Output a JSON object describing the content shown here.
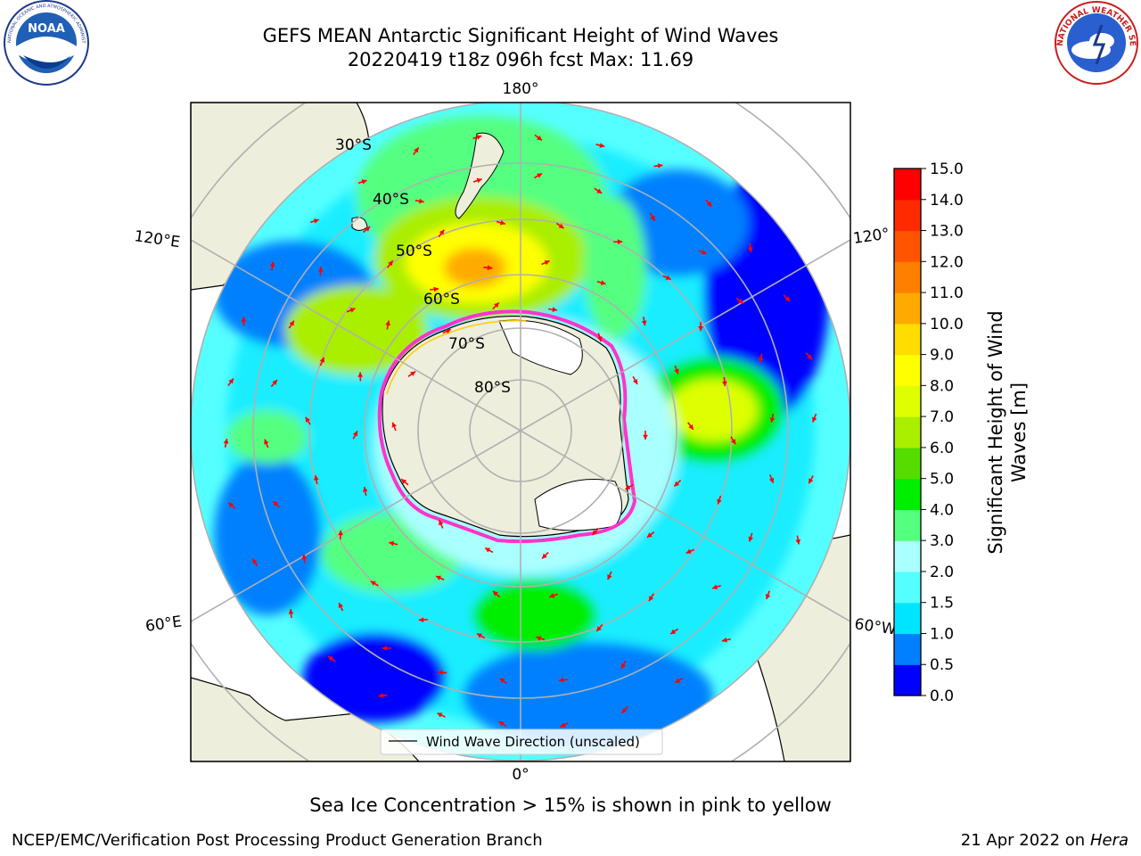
{
  "header": {
    "title_line1": "GEFS MEAN Antarctic Significant Height of Wind Waves",
    "title_line2": "20220419 t18z 096h fcst   Max: 11.69"
  },
  "logos": {
    "noaa_text": "NOAA",
    "noaa_ring_text": "NATIONAL OCEANIC AND ATMOSPHERIC ADMINISTRATION · U.S. DEPARTMENT OF COMMERCE",
    "nws_ring_text": "NATIONAL WEATHER SERVICE"
  },
  "map": {
    "projection": "south-polar-stereographic",
    "longitude_labels": {
      "top": "180°",
      "bottom": "0°",
      "left_upper": "120°E",
      "left_lower": "60°E",
      "right_upper": "120°",
      "right_lower": "60°W"
    },
    "latitude_labels": [
      "30°S",
      "40°S",
      "50°S",
      "60°S",
      "70°S",
      "80°S"
    ],
    "legend_label": "Wind Wave Direction (unscaled)",
    "arrow_color": "#ff0000",
    "land_color": "#eeeedc",
    "ice_edge_colors": [
      "#ff33cc",
      "#ffcc00"
    ]
  },
  "colorbar": {
    "label_line1": "Significant Height of Wind",
    "label_line2": "Waves [m]",
    "ticks": [
      "0.0",
      "0.5",
      "1.0",
      "1.5",
      "2.0",
      "3.0",
      "4.0",
      "5.0",
      "6.0",
      "7.0",
      "8.0",
      "9.0",
      "10.0",
      "11.0",
      "12.0",
      "13.0",
      "14.0",
      "15.0"
    ],
    "colors": [
      "#0000ff",
      "#0080ff",
      "#00e5ff",
      "#55ffff",
      "#aaffff",
      "#55ff80",
      "#00ee00",
      "#55dd00",
      "#aaee00",
      "#ddff00",
      "#ffff00",
      "#ffdd00",
      "#ffaa00",
      "#ff8000",
      "#ff5500",
      "#ff2a00",
      "#ff0000"
    ]
  },
  "footer": {
    "ice_note": "Sea Ice Concentration > 15% is shown in pink to yellow",
    "credit": "NCEP/EMC/Verification Post Processing Product Generation Branch",
    "date": "21 Apr 2022 on",
    "machine": "Hera"
  }
}
